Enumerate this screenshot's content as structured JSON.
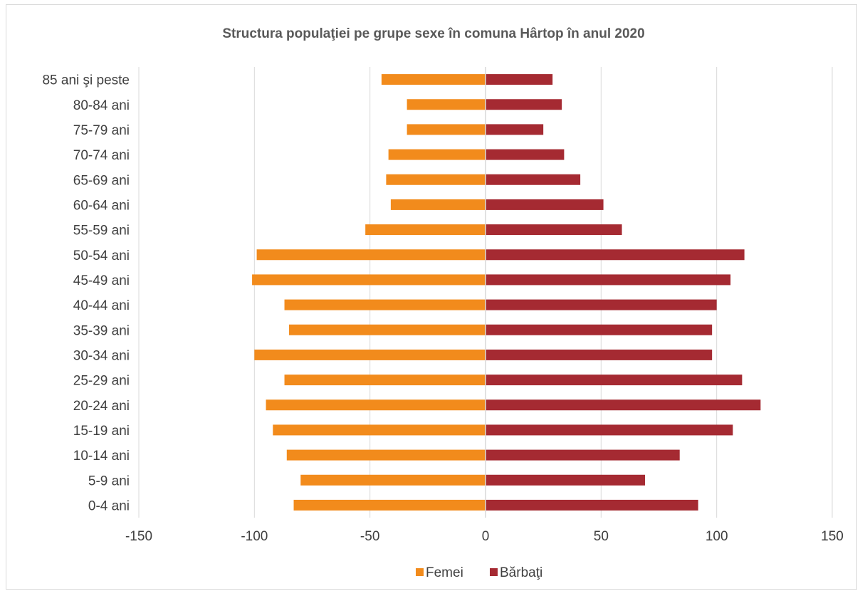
{
  "chart_data": {
    "type": "bar",
    "orientation": "horizontal",
    "title": "Structura populaţiei pe grupe sexe în comuna Hârtop în anul 2020",
    "xlabel": "",
    "ylabel": "",
    "xlim": [
      -150,
      150
    ],
    "x_ticks": [
      "-150",
      "-100",
      "-50",
      "0",
      "50",
      "100",
      "150"
    ],
    "x_tick_values": [
      -150,
      -100,
      -50,
      0,
      50,
      100,
      150
    ],
    "grid": "vertical",
    "legend_position": "bottom",
    "categories": [
      "85 ani şi peste",
      "80-84 ani",
      "75-79 ani",
      "70-74 ani",
      "65-69 ani",
      "60-64 ani",
      "55-59 ani",
      "50-54 ani",
      "45-49 ani",
      "40-44 ani",
      "35-39 ani",
      "30-34 ani",
      "25-29 ani",
      "20-24 ani",
      "15-19 ani",
      "10-14 ani",
      "5-9 ani",
      "0-4 ani"
    ],
    "series": [
      {
        "name": "Femei",
        "color": "#f28b1c",
        "values": [
          -45,
          -34,
          -34,
          -42,
          -43,
          -41,
          -52,
          -99,
          -101,
          -87,
          -85,
          -100,
          -87,
          -95,
          -92,
          -86,
          -80,
          -83
        ]
      },
      {
        "name": "Bărbaţi",
        "color": "#a52a32",
        "values": [
          29,
          33,
          25,
          34,
          41,
          51,
          59,
          112,
          106,
          100,
          98,
          98,
          111,
          119,
          107,
          84,
          69,
          92
        ]
      }
    ]
  }
}
